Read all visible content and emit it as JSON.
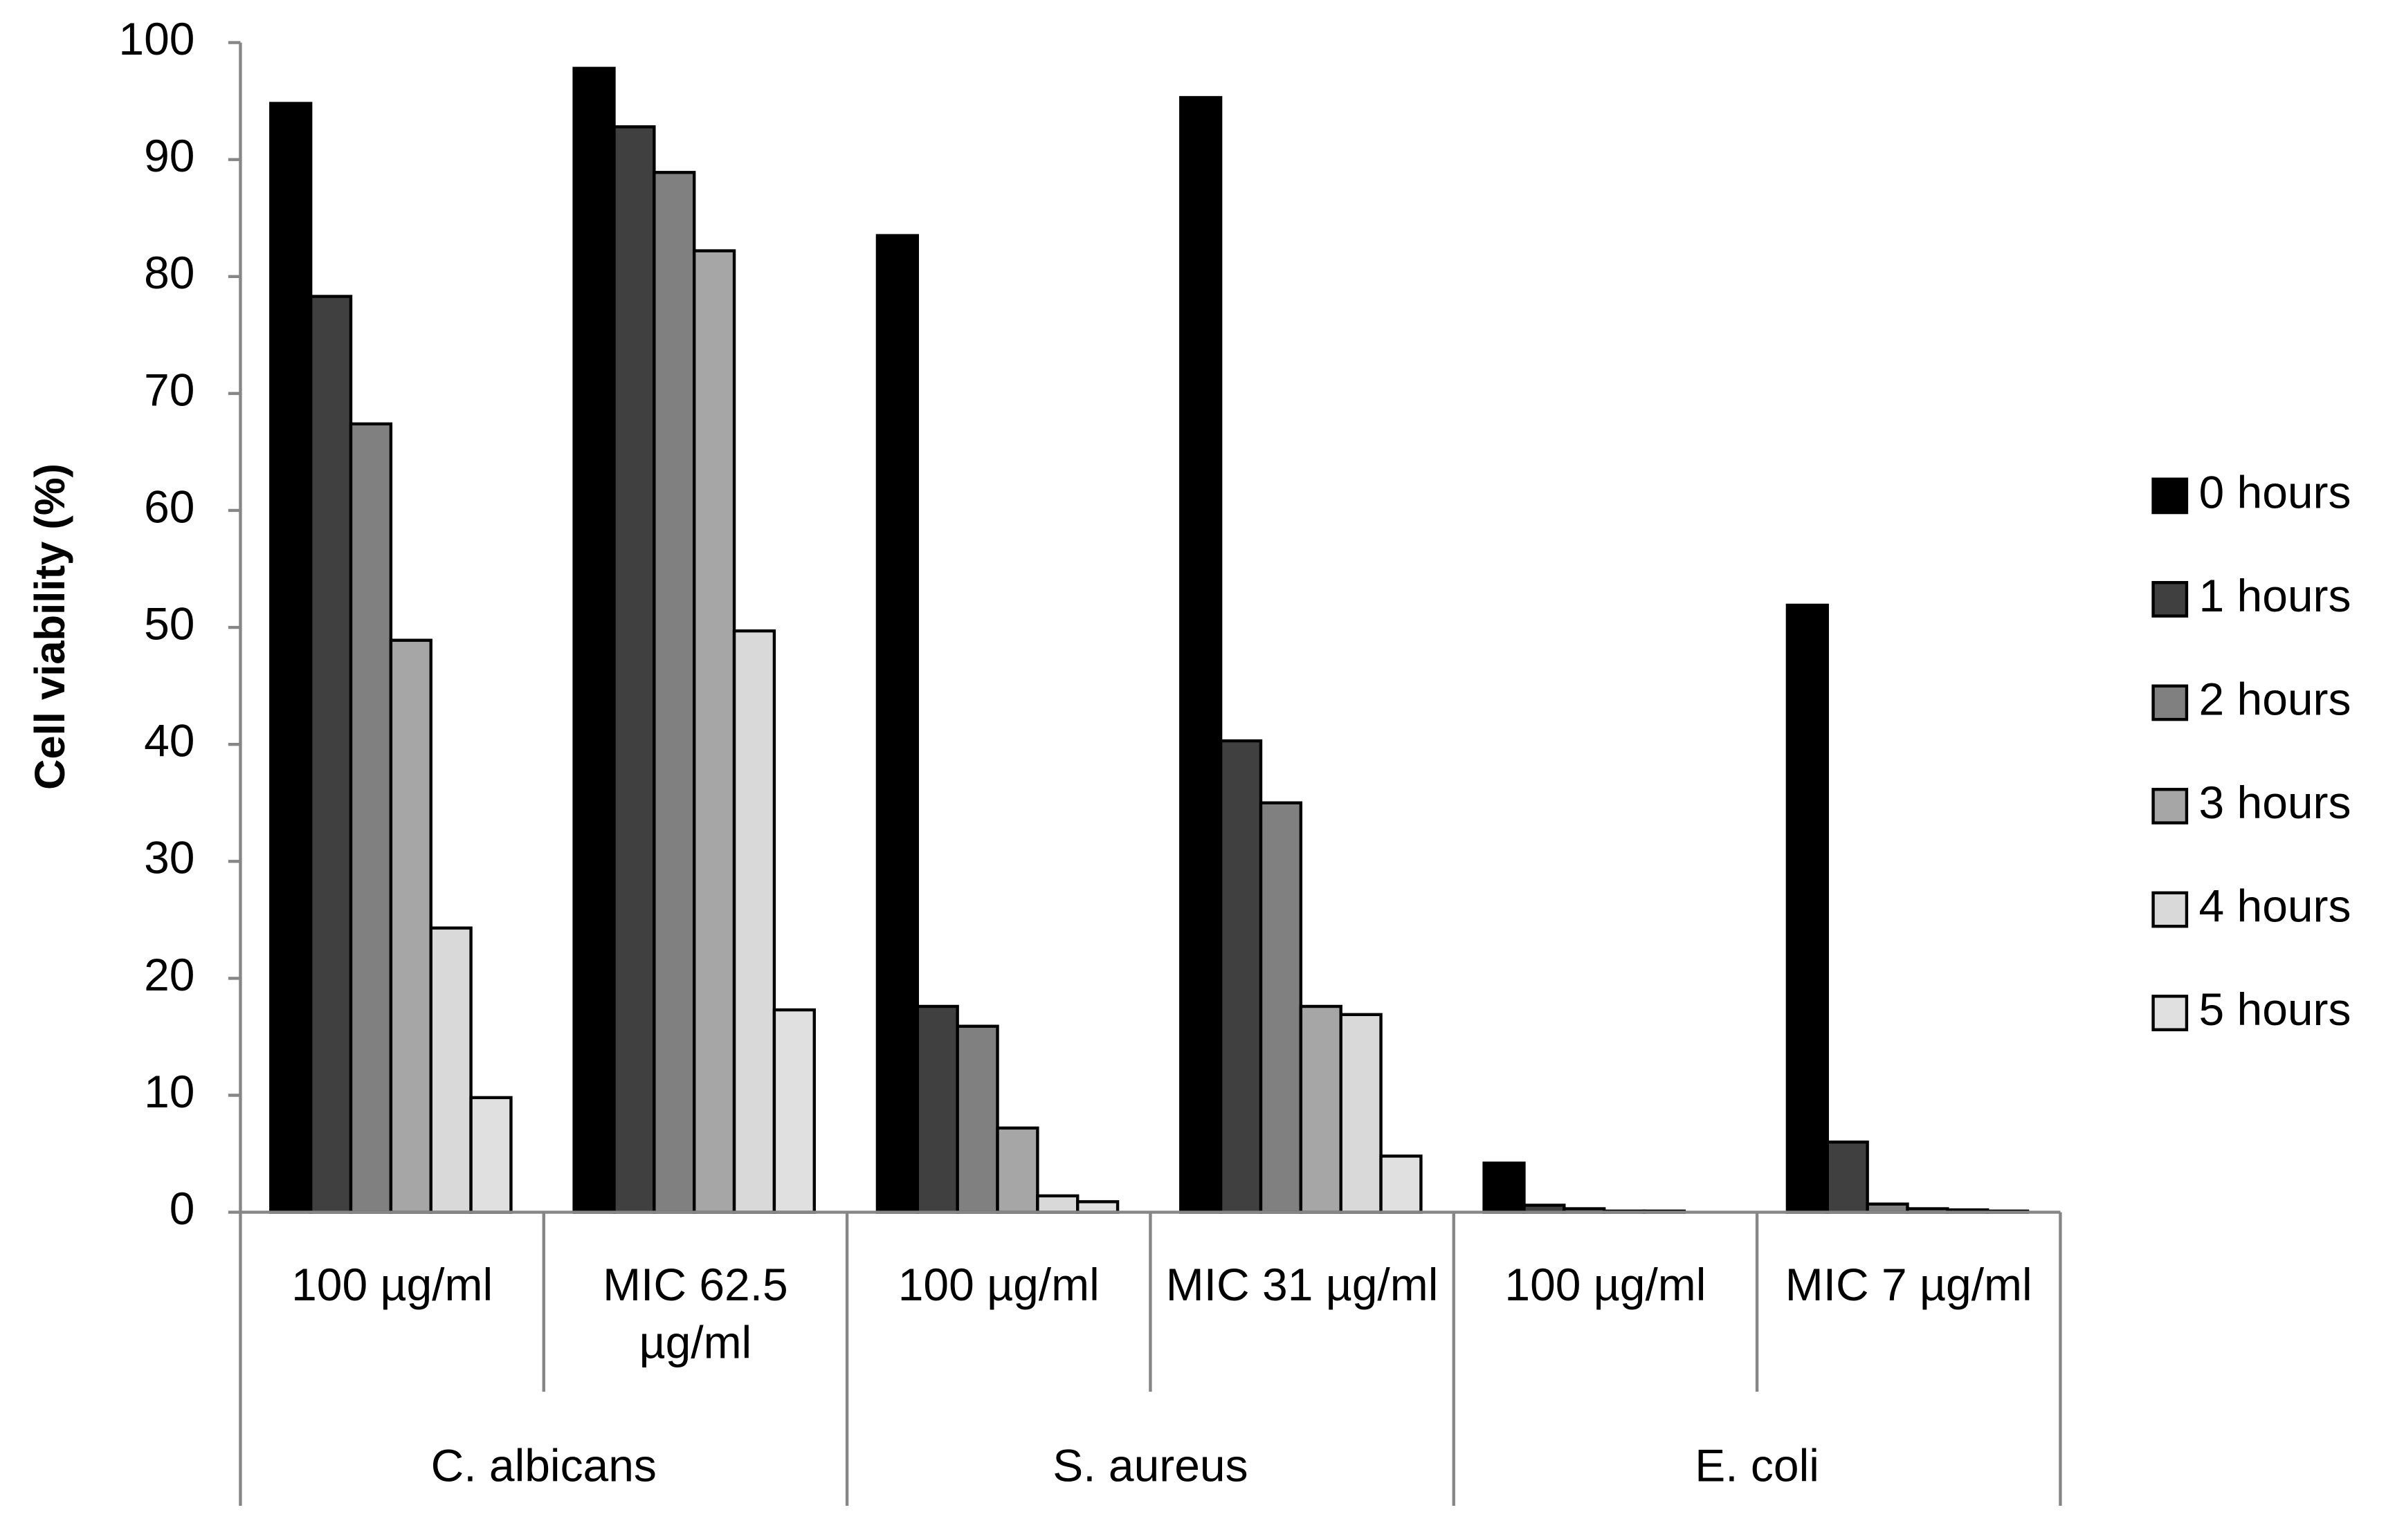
{
  "chart_data": {
    "type": "bar",
    "y_label": "Cell viability (%)",
    "categories": [
      "100 µg/ml",
      "MIC 62.5 µg/ml",
      "100 µg/ml",
      "MIC 31 µg/ml",
      "100 µg/ml",
      "MIC 7 µg/ml"
    ],
    "groups": [
      "C. albicans",
      "S. aureus",
      "E. coli"
    ],
    "series": [
      {
        "name": "0 hours",
        "color": "#000000",
        "values": [
          94.8,
          97.8,
          83.5,
          95.3,
          4.2,
          51.9
        ]
      },
      {
        "name": "1 hours",
        "color": "#404040",
        "values": [
          78.3,
          92.8,
          17.6,
          40.3,
          0.6,
          6.0
        ]
      },
      {
        "name": "2 hours",
        "color": "#808080",
        "values": [
          67.4,
          88.9,
          15.9,
          35.0,
          0.3,
          0.7
        ]
      },
      {
        "name": "3 hours",
        "color": "#a6a6a6",
        "values": [
          48.9,
          82.2,
          7.2,
          17.6,
          0.1,
          0.3
        ]
      },
      {
        "name": "4 hours",
        "color": "#d9d9d9",
        "values": [
          24.3,
          49.7,
          1.4,
          16.9,
          0.1,
          0.2
        ]
      },
      {
        "name": "5 hours",
        "color": "#e0e0e0",
        "values": [
          9.8,
          17.3,
          0.9,
          4.8,
          0.0,
          0.1
        ]
      }
    ],
    "ylim": [
      0,
      100
    ],
    "yticks": [
      0,
      10,
      20,
      30,
      40,
      50,
      60,
      70,
      80,
      90,
      100
    ],
    "grid": false,
    "legend": "right"
  }
}
